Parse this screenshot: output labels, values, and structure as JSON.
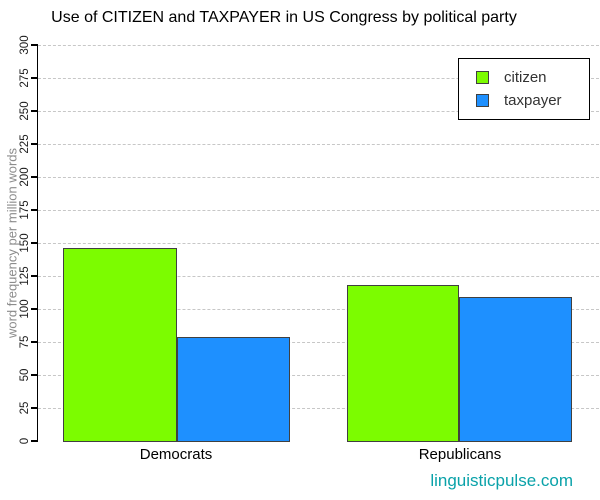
{
  "title": "Use of CITIZEN and TAXPAYER in US Congress by political party",
  "watermark": "linguisticpulse.com",
  "colors": {
    "citizen": "#7cfc00",
    "taxpayer": "#1e90ff",
    "bar_border": "#404040",
    "gridline": "#c7c7c7",
    "axis": "#000000",
    "tick_label": "#1c1c1c",
    "axis_title": "#8c8c8c",
    "legend_text": "#333333",
    "watermark": "#0aa2a9",
    "background": "#ffffff"
  },
  "chart_data": {
    "type": "bar",
    "title": "Use of CITIZEN and TAXPAYER in US Congress by political party",
    "categories": [
      "Democrats",
      "Republicans"
    ],
    "series": [
      {
        "name": "citizen",
        "color": "#7cfc00",
        "values": [
          146,
          118
        ]
      },
      {
        "name": "taxpayer",
        "color": "#1e90ff",
        "values": [
          79,
          109
        ]
      }
    ],
    "xlabel": "",
    "ylabel": "word frequency per million words",
    "ylim": [
      0,
      300
    ],
    "ytick_step": 25,
    "yticks": [
      0,
      25,
      50,
      75,
      100,
      125,
      150,
      175,
      200,
      225,
      250,
      275,
      300
    ],
    "grid": true,
    "gridline_style": "dashed",
    "legend_position": "top-right",
    "legend_entries": [
      "citizen",
      "taxpayer"
    ]
  }
}
